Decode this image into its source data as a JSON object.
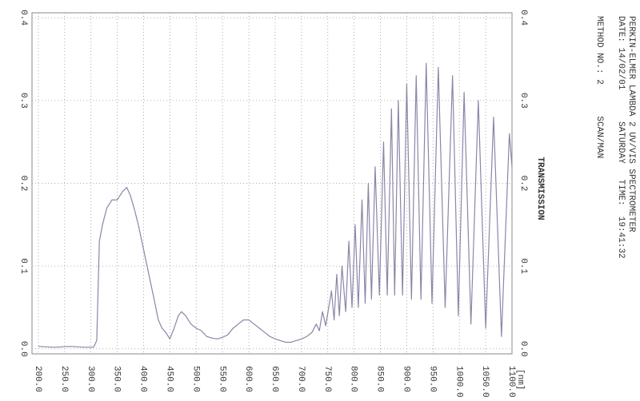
{
  "chart_data": {
    "type": "line",
    "header": [
      "PERKIN-ELMER LAMBDA 2 UV/VIS SPECTROMETER",
      "DATE: 14/02/01      SATURDAY   TIME:  19:41:32",
      "METHOD NO.: 2      SCAN/MAN"
    ],
    "ylabel": "TRANSMISSION",
    "xlabel": "[nm]",
    "x": [
      200,
      230,
      260,
      290,
      305,
      311,
      316,
      322,
      330,
      340,
      350,
      360,
      368,
      375,
      382,
      390,
      400,
      410,
      420,
      428,
      435,
      442,
      450,
      458,
      466,
      472,
      480,
      490,
      500,
      510,
      520,
      530,
      540,
      550,
      560,
      570,
      580,
      590,
      600,
      610,
      620,
      630,
      640,
      650,
      660,
      670,
      680,
      690,
      700,
      710,
      720,
      728,
      734,
      740,
      746,
      757,
      762,
      767,
      772,
      777,
      784,
      790,
      796,
      802,
      808,
      815,
      821,
      827,
      833,
      840,
      848,
      856,
      863,
      871,
      877,
      884,
      892,
      900,
      909,
      918,
      927,
      937,
      948,
      960,
      973,
      987,
      998,
      1009,
      1022,
      1036,
      1050,
      1065,
      1080,
      1095,
      1100
    ],
    "series": [
      {
        "color": "#8a86a8",
        "values": [
          0.003,
          0.002,
          0.003,
          0.002,
          0.002,
          0.01,
          0.13,
          0.15,
          0.17,
          0.18,
          0.18,
          0.19,
          0.195,
          0.185,
          0.17,
          0.15,
          0.12,
          0.09,
          0.06,
          0.035,
          0.025,
          0.02,
          0.012,
          0.025,
          0.04,
          0.045,
          0.04,
          0.03,
          0.025,
          0.022,
          0.015,
          0.013,
          0.012,
          0.014,
          0.017,
          0.025,
          0.03,
          0.035,
          0.035,
          0.03,
          0.025,
          0.02,
          0.015,
          0.012,
          0.01,
          0.008,
          0.008,
          0.01,
          0.012,
          0.015,
          0.02,
          0.03,
          0.022,
          0.045,
          0.028,
          0.07,
          0.035,
          0.09,
          0.04,
          0.1,
          0.045,
          0.13,
          0.05,
          0.15,
          0.05,
          0.18,
          0.055,
          0.2,
          0.06,
          0.22,
          0.065,
          0.25,
          0.065,
          0.29,
          0.065,
          0.3,
          0.065,
          0.32,
          0.06,
          0.33,
          0.06,
          0.345,
          0.055,
          0.34,
          0.05,
          0.33,
          0.04,
          0.31,
          0.03,
          0.3,
          0.025,
          0.28,
          0.015,
          0.26,
          0.22
        ]
      }
    ],
    "xlim": [
      188,
      1100
    ],
    "ylim": [
      -0.006,
      0.406
    ],
    "xticks": [
      {
        "value": 200,
        "label": "200.0"
      },
      {
        "value": 250,
        "label": "250.0"
      },
      {
        "value": 300,
        "label": "300.0"
      },
      {
        "value": 350,
        "label": "350.0"
      },
      {
        "value": 400,
        "label": "400.0"
      },
      {
        "value": 450,
        "label": "450.0"
      },
      {
        "value": 500,
        "label": "500.0"
      },
      {
        "value": 550,
        "label": "550.0"
      },
      {
        "value": 600,
        "label": "600.0"
      },
      {
        "value": 650,
        "label": "650.0"
      },
      {
        "value": 700,
        "label": "700.0"
      },
      {
        "value": 750,
        "label": "750.0"
      },
      {
        "value": 800,
        "label": "800.0"
      },
      {
        "value": 850,
        "label": "850.0"
      },
      {
        "value": 900,
        "label": "900.0"
      },
      {
        "value": 950,
        "label": "950.0"
      },
      {
        "value": 1000,
        "label": "1000.0"
      },
      {
        "value": 1050,
        "label": "1050.0"
      },
      {
        "value": 1100,
        "label": "1100.0"
      }
    ],
    "yticks": [
      {
        "value": 0,
        "label": "0.0"
      },
      0.1,
      0.2,
      0.3,
      0.4
    ],
    "grid": true
  }
}
